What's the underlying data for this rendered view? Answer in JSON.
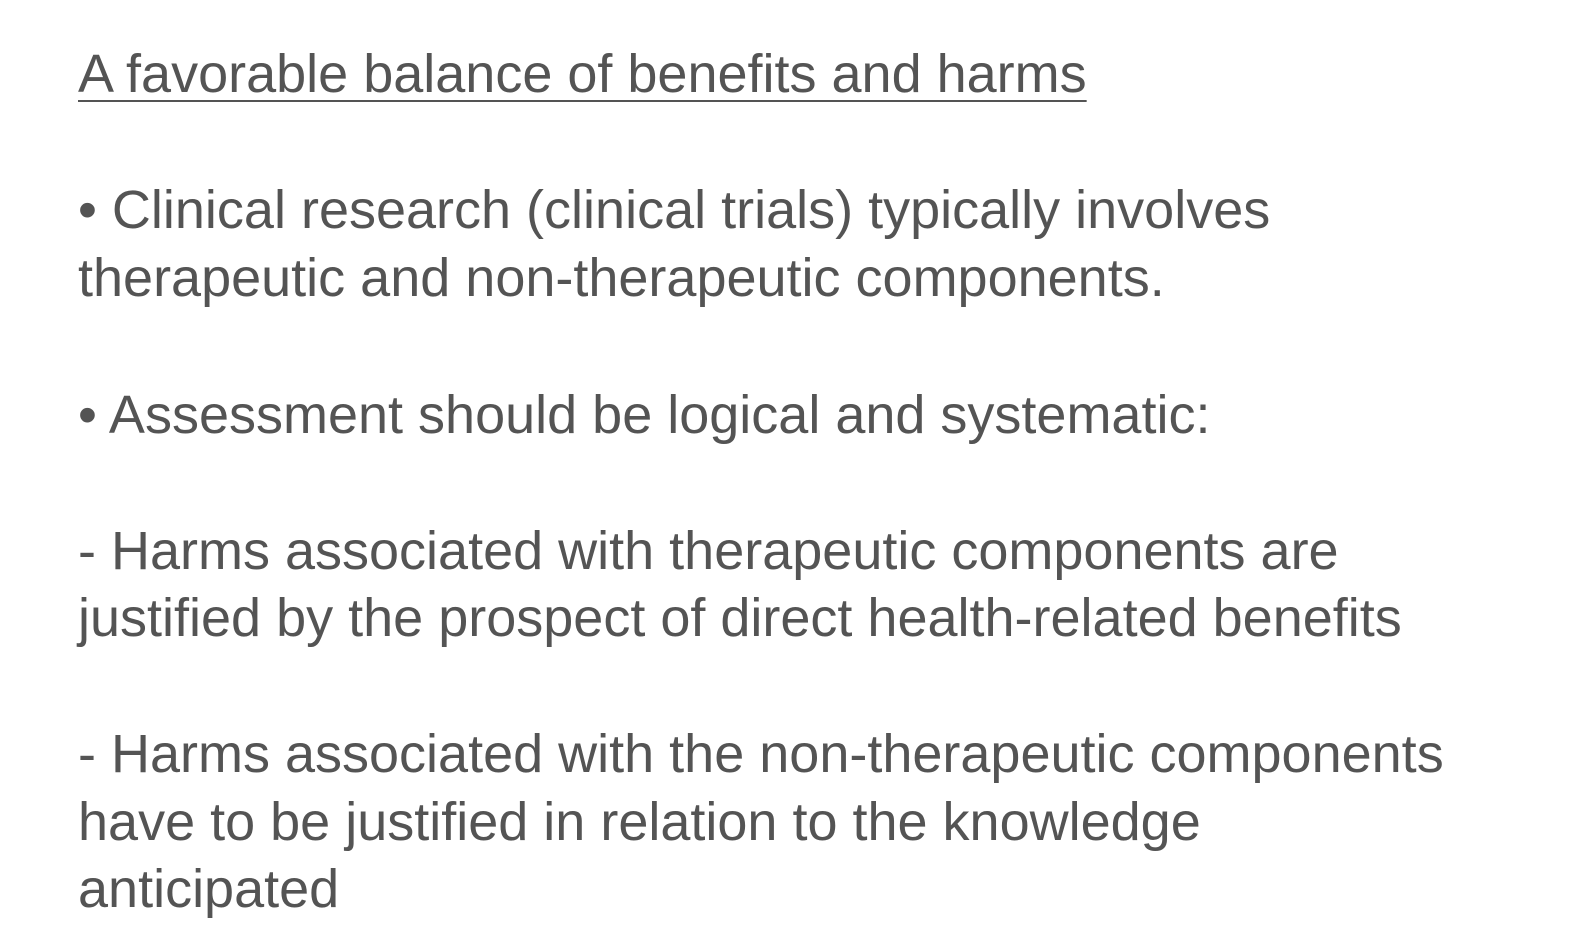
{
  "title": "A favorable balance of benefits and harms",
  "bullets": [
    {
      "lines": [
        "• Clinical research (clinical trials) typically involves",
        "therapeutic and non-therapeutic components."
      ]
    },
    {
      "lines": [
        "• Assessment should be logical and systematic:"
      ]
    },
    {
      "lines": [
        "- Harms associated with therapeutic components are",
        "justified by the prospect of direct health-related benefits"
      ]
    },
    {
      "lines": [
        "- Harms associated with the non-therapeutic components",
        "have to be justified in relation to the knowledge",
        "anticipated"
      ]
    }
  ]
}
